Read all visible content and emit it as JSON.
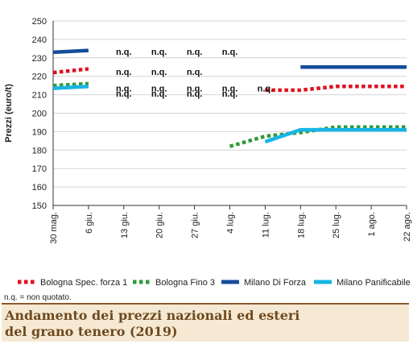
{
  "chart_data": {
    "type": "line",
    "ylabel": "Prezzi (euro/t)",
    "xlabel": "",
    "ylim": [
      150,
      250
    ],
    "yticks": [
      150,
      160,
      170,
      180,
      190,
      200,
      210,
      220,
      230,
      240,
      250
    ],
    "categories": [
      "30 mag.",
      "6 giu.",
      "13 giu.",
      "20 giu.",
      "27 giu.",
      "4 lug.",
      "11 lug.",
      "18 lug.",
      "25 lug.",
      "1 ago.",
      "22 ago."
    ],
    "grid": "horizontal",
    "legend_position": "bottom",
    "series": [
      {
        "name": "Bologna Spec. forza 1",
        "color": "#e0101e",
        "style": "dotted",
        "values": [
          222,
          224,
          null,
          null,
          null,
          null,
          212.5,
          212.5,
          214.5,
          214.5,
          214.5
        ],
        "nq_categories": [
          "13 giu.",
          "20 giu.",
          "27 giu.",
          "4 lug."
        ]
      },
      {
        "name": "Bologna Fino 3",
        "color": "#2f9a3a",
        "style": "dotted",
        "values": [
          215,
          216,
          null,
          null,
          null,
          182,
          187.5,
          189.5,
          192.5,
          192.5,
          192.5
        ],
        "nq_categories": [
          "13 giu.",
          "20 giu.",
          "27 giu."
        ]
      },
      {
        "name": "Milano Di Forza",
        "color": "#144d99",
        "style": "solid",
        "values": [
          233,
          234,
          null,
          null,
          null,
          null,
          null,
          225,
          225,
          225,
          225
        ],
        "nq_categories": [
          "13 giu.",
          "20 giu.",
          "27 giu.",
          "4 lug.",
          "11 lug."
        ]
      },
      {
        "name": "Milano Panificabile",
        "color": "#18b4e6",
        "style": "solid",
        "values": [
          213.5,
          214.5,
          null,
          null,
          null,
          null,
          184.5,
          191,
          191,
          191,
          191
        ],
        "nq_categories": [
          "13 giu.",
          "20 giu.",
          "27 giu.",
          "4 lug."
        ]
      }
    ],
    "nq_label": "n.q."
  },
  "note": "n.q. = non quotato.",
  "caption": {
    "line1": "Andamento dei prezzi nazionali ed esteri",
    "line2": "del grano tenero (2019)"
  }
}
